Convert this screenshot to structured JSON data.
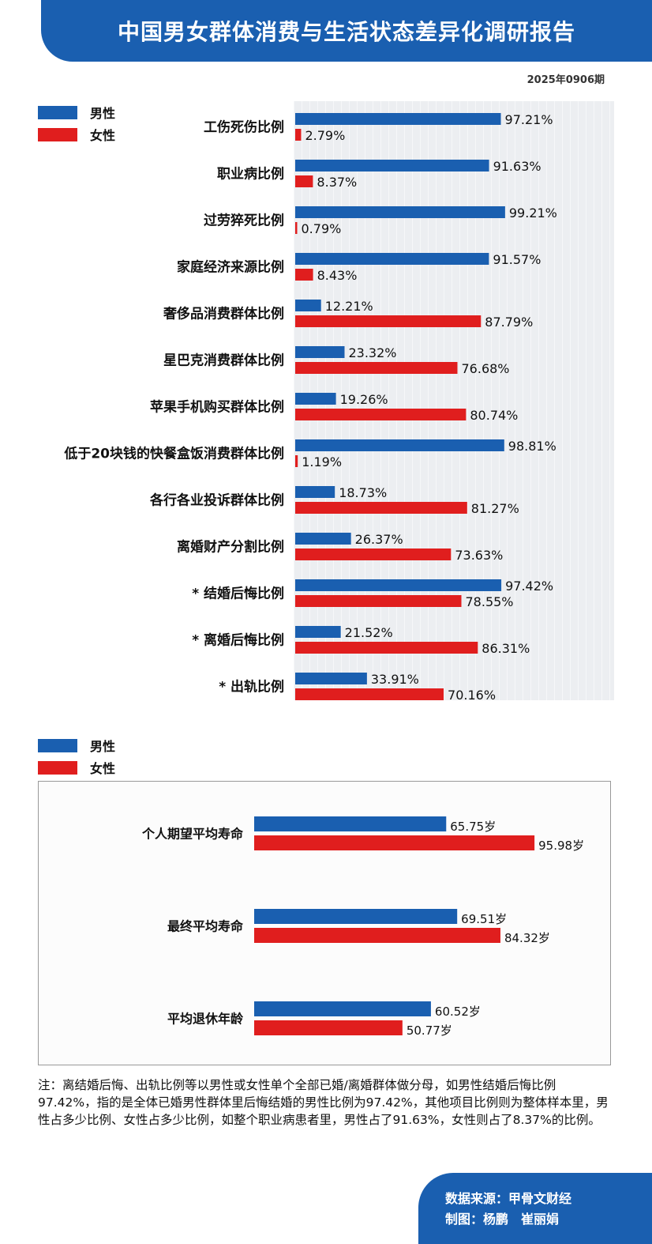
{
  "header": {
    "title": "中国男女群体消费与生活状态差异化调研报告",
    "issue": "2025年0906期"
  },
  "legend": {
    "male": "男性",
    "female": "女性"
  },
  "colors": {
    "male": "#1a5fb0",
    "female": "#e01e1e"
  },
  "chart_data": [
    {
      "type": "bar",
      "orientation": "horizontal",
      "categories": [
        "工伤死伤比例",
        "职业病比例",
        "过劳猝死比例",
        "家庭经济来源比例",
        "奢侈品消费群体比例",
        "星巴克消费群体比例",
        "苹果手机购买群体比例",
        "低于20块钱的快餐盒饭消费群体比例",
        "各行各业投诉群体比例",
        "离婚财产分割比例",
        "* 结婚后悔比例",
        "* 离婚后悔比例",
        "* 出轨比例"
      ],
      "series": [
        {
          "name": "男性",
          "values": [
            97.21,
            91.63,
            99.21,
            91.57,
            12.21,
            23.32,
            19.26,
            98.81,
            18.73,
            26.37,
            97.42,
            21.52,
            33.91
          ],
          "labels": [
            "97.21%",
            "91.63%",
            "99.21%",
            "91.57%",
            "12.21%",
            "23.32%",
            "19.26%",
            "98.81%",
            "18.73%",
            "26.37%",
            "97.42%",
            "21.52%",
            "33.91%"
          ]
        },
        {
          "name": "女性",
          "values": [
            2.79,
            8.37,
            0.79,
            8.43,
            87.79,
            76.68,
            80.74,
            1.19,
            81.27,
            73.63,
            78.55,
            86.31,
            70.16
          ],
          "labels": [
            "2.79%",
            "8.37%",
            "0.79%",
            "8.43%",
            "87.79%",
            "76.68%",
            "80.74%",
            "1.19%",
            "81.27%",
            "73.63%",
            "78.55%",
            "86.31%",
            "70.16%"
          ]
        }
      ],
      "xlim": [
        0,
        100
      ],
      "grid": true,
      "legend": "top-left"
    },
    {
      "type": "bar",
      "orientation": "horizontal",
      "categories": [
        "个人期望平均寿命",
        "最终平均寿命",
        "平均退休年龄"
      ],
      "series": [
        {
          "name": "男性",
          "values": [
            65.75,
            69.51,
            60.52
          ],
          "labels": [
            "65.75岁",
            "69.51岁",
            "60.52岁"
          ]
        },
        {
          "name": "女性",
          "values": [
            95.98,
            84.32,
            50.77
          ],
          "labels": [
            "95.98岁",
            "84.32岁",
            "50.77岁"
          ]
        }
      ],
      "xlim": [
        0,
        100
      ],
      "legend": "top-left"
    }
  ],
  "note": "注：离结婚后悔、出轨比例等以男性或女性单个全部已婚/离婚群体做分母，如男性结婚后悔比例97.42%，指的是全体已婚男性群体里后悔结婚的男性比例为97.42%，其他项目比例则为整体样本里，男性占多少比例、女性占多少比例，如整个职业病患者里，男性占了91.63%，女性则占了8.37%的比例。",
  "footer": {
    "source": "数据来源：甲骨文财经",
    "credits": "制图：杨鹏　崔丽娟"
  }
}
